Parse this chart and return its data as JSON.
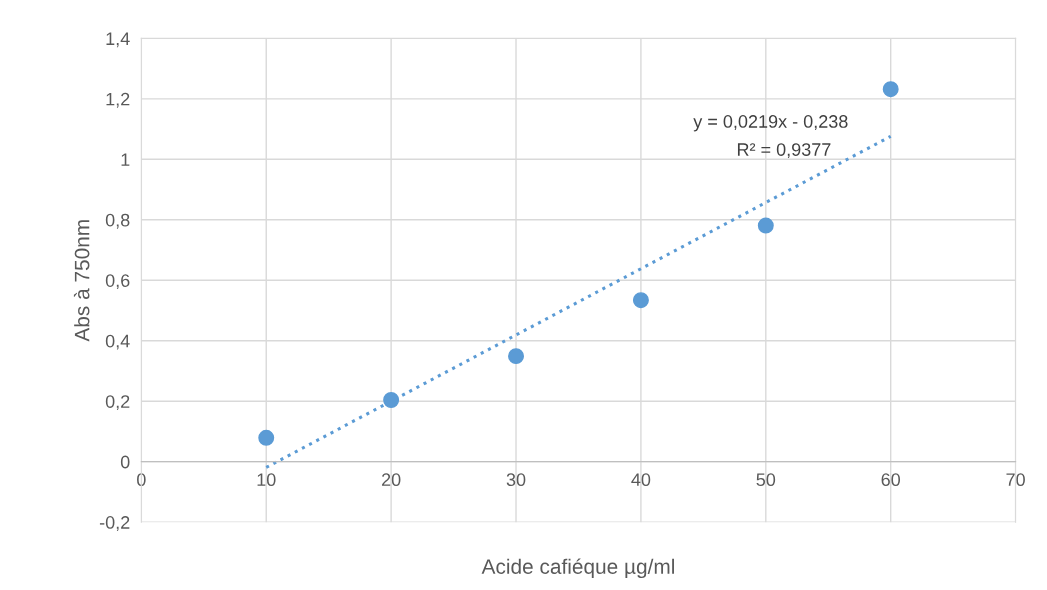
{
  "chart_data": {
    "type": "scatter",
    "xlabel": "Acide cafiéque µg/ml",
    "ylabel": "Abs à 750nm",
    "series": [
      {
        "color": "#5b9bd5",
        "marker": "circle",
        "x": [
          10,
          20,
          30,
          40,
          50,
          60
        ],
        "values": [
          0.079,
          0.204,
          0.349,
          0.534,
          0.781,
          1.232
        ]
      },
      {
        "type": "line",
        "color": "#5b9bd5",
        "line_style": "dotted",
        "marker": "none",
        "x": [
          10,
          60
        ],
        "values": [
          -0.019,
          1.076
        ]
      }
    ],
    "annotations": [
      "y = 0,0219x - 0,238",
      "R² = 0,9377"
    ],
    "xlim": [
      0,
      70
    ],
    "xticks": [
      0,
      10,
      20,
      30,
      40,
      50,
      60,
      70
    ],
    "ylim": [
      -0.2,
      1.4
    ],
    "yticks": [
      {
        "value": -0.2,
        "label": "-0,2"
      },
      0,
      {
        "value": 0.2,
        "label": "0,2"
      },
      {
        "value": 0.4,
        "label": "0,4"
      },
      {
        "value": 0.6,
        "label": "0,6"
      },
      {
        "value": 0.8,
        "label": "0,8"
      },
      1,
      {
        "value": 1.2,
        "label": "1,2"
      },
      {
        "value": 1.4,
        "label": "1,4"
      }
    ],
    "grid": true,
    "legend": false
  }
}
